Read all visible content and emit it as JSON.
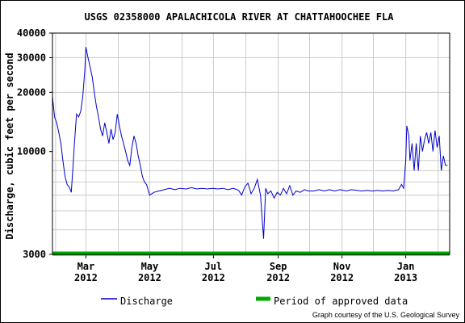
{
  "chart_data": {
    "type": "line",
    "title": "USGS 02358000 APALACHICOLA RIVER AT CHATTAHOOCHEE FLA",
    "ylabel": "Discharge, cubic feet per second",
    "xlabel": "",
    "yscale": "log",
    "ylim": [
      3000,
      40000
    ],
    "y_ticks": [
      3000,
      10000,
      20000,
      30000,
      40000
    ],
    "x_ticks": [
      {
        "label": "Mar",
        "year": "2012",
        "date": "2012-03-01"
      },
      {
        "label": "May",
        "year": "2012",
        "date": "2012-05-01"
      },
      {
        "label": "Jul",
        "year": "2012",
        "date": "2012-07-01"
      },
      {
        "label": "Sep",
        "year": "2012",
        "date": "2012-09-01"
      },
      {
        "label": "Nov",
        "year": "2012",
        "date": "2012-11-01"
      },
      {
        "label": "Jan",
        "year": "2013",
        "date": "2013-01-01"
      }
    ],
    "xlim": [
      "2012-01-29",
      "2013-02-12"
    ],
    "grid": true,
    "series": [
      {
        "name": "Discharge",
        "color": "#0000cc",
        "points": [
          [
            "2012-01-29",
            19000
          ],
          [
            "2012-01-31",
            15000
          ],
          [
            "2012-02-02",
            14000
          ],
          [
            "2012-02-04",
            12500
          ],
          [
            "2012-02-06",
            11000
          ],
          [
            "2012-02-08",
            9000
          ],
          [
            "2012-02-10",
            7500
          ],
          [
            "2012-02-12",
            6800
          ],
          [
            "2012-02-14",
            6600
          ],
          [
            "2012-02-16",
            6200
          ],
          [
            "2012-02-18",
            9000
          ],
          [
            "2012-02-19",
            11000
          ],
          [
            "2012-02-21",
            15500
          ],
          [
            "2012-02-23",
            15000
          ],
          [
            "2012-02-25",
            16000
          ],
          [
            "2012-02-27",
            19000
          ],
          [
            "2012-02-29",
            26000
          ],
          [
            "2012-03-01",
            34000
          ],
          [
            "2012-03-03",
            30000
          ],
          [
            "2012-03-05",
            27000
          ],
          [
            "2012-03-07",
            24000
          ],
          [
            "2012-03-09",
            20000
          ],
          [
            "2012-03-11",
            17000
          ],
          [
            "2012-03-13",
            15000
          ],
          [
            "2012-03-15",
            13000
          ],
          [
            "2012-03-17",
            12000
          ],
          [
            "2012-03-19",
            14000
          ],
          [
            "2012-03-21",
            12500
          ],
          [
            "2012-03-23",
            11000
          ],
          [
            "2012-03-25",
            13000
          ],
          [
            "2012-03-27",
            11500
          ],
          [
            "2012-03-29",
            12500
          ],
          [
            "2012-03-31",
            15500
          ],
          [
            "2012-04-02",
            13500
          ],
          [
            "2012-04-04",
            12000
          ],
          [
            "2012-04-06",
            11000
          ],
          [
            "2012-04-08",
            10000
          ],
          [
            "2012-04-10",
            9000
          ],
          [
            "2012-04-12",
            8500
          ],
          [
            "2012-04-14",
            10500
          ],
          [
            "2012-04-16",
            12000
          ],
          [
            "2012-04-18",
            11000
          ],
          [
            "2012-04-20",
            9500
          ],
          [
            "2012-04-22",
            8500
          ],
          [
            "2012-04-24",
            7500
          ],
          [
            "2012-04-26",
            7000
          ],
          [
            "2012-04-28",
            6800
          ],
          [
            "2012-05-01",
            6000
          ],
          [
            "2012-05-05",
            6200
          ],
          [
            "2012-05-10",
            6300
          ],
          [
            "2012-05-15",
            6400
          ],
          [
            "2012-05-20",
            6500
          ],
          [
            "2012-05-25",
            6400
          ],
          [
            "2012-05-30",
            6500
          ],
          [
            "2012-06-05",
            6450
          ],
          [
            "2012-06-10",
            6550
          ],
          [
            "2012-06-15",
            6450
          ],
          [
            "2012-06-20",
            6500
          ],
          [
            "2012-06-25",
            6450
          ],
          [
            "2012-06-30",
            6500
          ],
          [
            "2012-07-05",
            6450
          ],
          [
            "2012-07-10",
            6500
          ],
          [
            "2012-07-15",
            6400
          ],
          [
            "2012-07-20",
            6500
          ],
          [
            "2012-07-25",
            6350
          ],
          [
            "2012-07-28",
            6000
          ],
          [
            "2012-07-31",
            6600
          ],
          [
            "2012-08-03",
            6900
          ],
          [
            "2012-08-06",
            6100
          ],
          [
            "2012-08-09",
            6500
          ],
          [
            "2012-08-12",
            7200
          ],
          [
            "2012-08-15",
            6000
          ],
          [
            "2012-08-18",
            3600
          ],
          [
            "2012-08-20",
            6500
          ],
          [
            "2012-08-22",
            6100
          ],
          [
            "2012-08-25",
            6300
          ],
          [
            "2012-08-28",
            5800
          ],
          [
            "2012-08-31",
            6200
          ],
          [
            "2012-09-03",
            6000
          ],
          [
            "2012-09-06",
            6500
          ],
          [
            "2012-09-09",
            6100
          ],
          [
            "2012-09-12",
            6700
          ],
          [
            "2012-09-15",
            6000
          ],
          [
            "2012-09-18",
            6300
          ],
          [
            "2012-09-22",
            6200
          ],
          [
            "2012-09-26",
            6400
          ],
          [
            "2012-09-30",
            6300
          ],
          [
            "2012-10-05",
            6300
          ],
          [
            "2012-10-10",
            6400
          ],
          [
            "2012-10-15",
            6300
          ],
          [
            "2012-10-20",
            6400
          ],
          [
            "2012-10-25",
            6300
          ],
          [
            "2012-10-30",
            6400
          ],
          [
            "2012-11-05",
            6300
          ],
          [
            "2012-11-10",
            6400
          ],
          [
            "2012-11-15",
            6350
          ],
          [
            "2012-11-20",
            6300
          ],
          [
            "2012-11-25",
            6350
          ],
          [
            "2012-11-30",
            6300
          ],
          [
            "2012-12-05",
            6350
          ],
          [
            "2012-12-10",
            6300
          ],
          [
            "2012-12-15",
            6350
          ],
          [
            "2012-12-20",
            6300
          ],
          [
            "2012-12-25",
            6400
          ],
          [
            "2012-12-28",
            6800
          ],
          [
            "2012-12-30",
            6500
          ],
          [
            "2013-01-01",
            9000
          ],
          [
            "2013-01-02",
            13500
          ],
          [
            "2013-01-04",
            12000
          ],
          [
            "2013-01-05",
            9000
          ],
          [
            "2013-01-07",
            11000
          ],
          [
            "2013-01-09",
            8000
          ],
          [
            "2013-01-11",
            11000
          ],
          [
            "2013-01-13",
            8000
          ],
          [
            "2013-01-15",
            12000
          ],
          [
            "2013-01-17",
            10000
          ],
          [
            "2013-01-19",
            11500
          ],
          [
            "2013-01-21",
            12500
          ],
          [
            "2013-01-23",
            11000
          ],
          [
            "2013-01-25",
            12500
          ],
          [
            "2013-01-27",
            10000
          ],
          [
            "2013-01-29",
            12800
          ],
          [
            "2013-01-31",
            10500
          ],
          [
            "2013-02-02",
            12000
          ],
          [
            "2013-02-04",
            8000
          ],
          [
            "2013-02-06",
            9500
          ],
          [
            "2013-02-08",
            8500
          ],
          [
            "2013-02-10",
            8500
          ]
        ]
      },
      {
        "name": "Period of approved data",
        "color": "#00aa00",
        "range": [
          "2012-01-29",
          "2013-02-12"
        ],
        "level": 3000
      }
    ]
  },
  "legend": {
    "discharge_label": "Discharge",
    "approved_label": "Period of approved data"
  },
  "credit": "Graph courtesy of the U.S. Geological Survey"
}
